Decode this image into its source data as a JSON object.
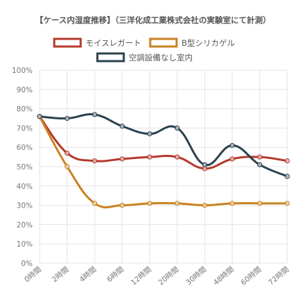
{
  "chart_data": {
    "type": "line",
    "title": "【ケース内湿度推移】（三洋化成工業株式会社の実験室にて計測）",
    "categories": [
      "0時間",
      "2時間",
      "4時間",
      "6時間",
      "12時間",
      "20時間",
      "30時間",
      "48時間",
      "60時間",
      "72時間"
    ],
    "ylim": [
      0,
      100
    ],
    "yticks": [
      "0%",
      "10%",
      "20%",
      "30%",
      "40%",
      "50%",
      "60%",
      "70%",
      "80%",
      "90%",
      "100%"
    ],
    "grid": true,
    "legend_position": "top",
    "series": [
      {
        "name": "モイスレガート",
        "color": "#b5382b",
        "values": [
          76,
          57,
          53,
          54,
          55,
          55,
          49,
          54,
          55,
          53
        ]
      },
      {
        "name": "B型シリカゲル",
        "color": "#c9821f",
        "values": [
          76,
          50,
          31,
          30,
          31,
          31,
          30,
          31,
          31,
          31
        ]
      },
      {
        "name": "空調設備なし室内",
        "color": "#2b414f",
        "values": [
          76,
          75,
          77,
          71,
          67,
          70,
          51,
          61,
          51,
          45
        ]
      }
    ]
  }
}
